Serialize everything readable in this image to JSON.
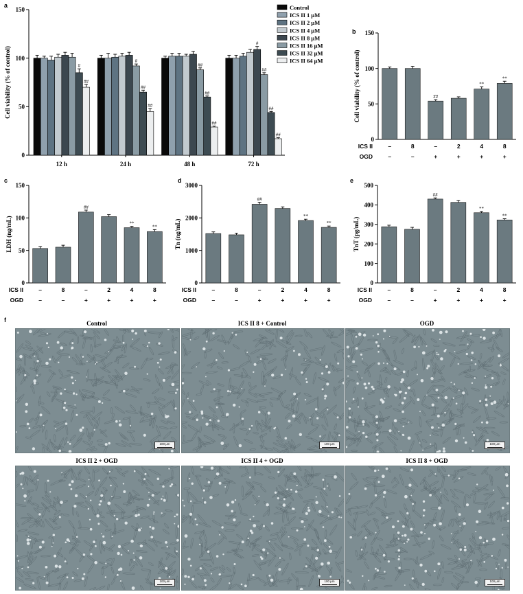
{
  "panel_labels": {
    "a": "a",
    "b": "b",
    "c": "c",
    "d": "d",
    "e": "e",
    "f": "f"
  },
  "chart_data": [
    {
      "id": "a",
      "type": "bar",
      "ylabel": "Cell viability (% of control)",
      "ylim": [
        0,
        150
      ],
      "yticks": [
        0,
        50,
        100,
        150
      ],
      "categories": [
        "12 h",
        "24 h",
        "48 h",
        "72 h"
      ],
      "series": [
        {
          "name": "Control",
          "color": "#0a0a0a",
          "values": [
            100,
            100,
            100,
            100
          ],
          "errors": [
            3,
            3,
            2,
            3
          ],
          "marks": [
            "",
            "",
            "",
            ""
          ]
        },
        {
          "name": "ICS II 1 μM",
          "color": "#8fa0ad",
          "values": [
            100,
            100,
            102,
            100
          ],
          "errors": [
            2,
            5,
            3,
            3
          ],
          "marks": [
            "",
            "",
            "",
            ""
          ]
        },
        {
          "name": "ICS II 2 μM",
          "color": "#5e7382",
          "values": [
            98,
            101,
            102,
            102
          ],
          "errors": [
            4,
            3,
            3,
            3
          ],
          "marks": [
            "",
            "",
            "",
            ""
          ]
        },
        {
          "name": "ICS II 4 μM",
          "color": "#c2cacf",
          "values": [
            101,
            102,
            102,
            106
          ],
          "errors": [
            3,
            3,
            2,
            3
          ],
          "marks": [
            "",
            "",
            "",
            ""
          ]
        },
        {
          "name": "ICS II 8 μM",
          "color": "#3c474f",
          "values": [
            103,
            103,
            104,
            109
          ],
          "errors": [
            3,
            3,
            3,
            3
          ],
          "marks": [
            "",
            "",
            "",
            "#"
          ]
        },
        {
          "name": "ICS II 16 μM",
          "color": "#8a9ba4",
          "values": [
            101,
            92,
            88,
            83
          ],
          "errors": [
            4,
            2,
            2,
            2
          ],
          "marks": [
            "",
            "#",
            "##",
            "##"
          ]
        },
        {
          "name": "ICS II 32 μM",
          "color": "#3d4b52",
          "values": [
            85,
            65,
            60,
            44
          ],
          "errors": [
            4,
            2,
            1,
            1
          ],
          "marks": [
            "#",
            "##",
            "##",
            "##"
          ]
        },
        {
          "name": "ICS II 64 μM",
          "color": "#eceeef",
          "values": [
            70,
            45,
            29,
            17
          ],
          "errors": [
            3,
            3,
            1,
            1
          ],
          "marks": [
            "##",
            "##",
            "##",
            "##"
          ]
        }
      ]
    },
    {
      "id": "b",
      "type": "bar",
      "ylabel": "Cell viability (% of control)",
      "ylim": [
        0,
        150
      ],
      "yticks": [
        0,
        50,
        100,
        150
      ],
      "values": [
        100,
        100,
        54,
        58,
        71,
        79
      ],
      "errors": [
        2,
        3,
        2,
        2,
        3,
        3
      ],
      "marks": [
        "",
        "",
        "##",
        "",
        "**",
        "**"
      ],
      "bar_color": "#6b7a80",
      "factor_rows": [
        {
          "name": "ICS II",
          "cells": [
            "–",
            "8",
            "–",
            "2",
            "4",
            "8"
          ]
        },
        {
          "name": "OGD",
          "cells": [
            "–",
            "–",
            "+",
            "+",
            "+",
            "+"
          ]
        }
      ]
    },
    {
      "id": "c",
      "type": "bar",
      "ylabel": "LDH (ng/mL)",
      "ylim": [
        0,
        150
      ],
      "yticks": [
        0,
        50,
        100,
        150
      ],
      "values": [
        53,
        55,
        109,
        102,
        85,
        79
      ],
      "errors": [
        3,
        3,
        3,
        3,
        2,
        3
      ],
      "marks": [
        "",
        "",
        "##",
        "",
        "**",
        "**"
      ],
      "bar_color": "#6b7a80",
      "factor_rows": [
        {
          "name": "ICS II",
          "cells": [
            "–",
            "8",
            "–",
            "2",
            "4",
            "8"
          ]
        },
        {
          "name": "OGD",
          "cells": [
            "–",
            "–",
            "+",
            "+",
            "+",
            "+"
          ]
        }
      ]
    },
    {
      "id": "d",
      "type": "bar",
      "ylabel": "Tn (ng/mL)",
      "ylim": [
        0,
        3000
      ],
      "yticks": [
        0,
        1000,
        2000,
        3000
      ],
      "values": [
        1520,
        1480,
        2420,
        2290,
        1920,
        1710
      ],
      "errors": [
        50,
        50,
        60,
        50,
        40,
        40
      ],
      "marks": [
        "",
        "",
        "##",
        "",
        "**",
        "**"
      ],
      "bar_color": "#6b7a80",
      "factor_rows": [
        {
          "name": "ICS II",
          "cells": [
            "–",
            "8",
            "–",
            "2",
            "4",
            "8"
          ]
        },
        {
          "name": "OGD",
          "cells": [
            "–",
            "–",
            "+",
            "+",
            "+",
            "+"
          ]
        }
      ]
    },
    {
      "id": "e",
      "type": "bar",
      "ylabel": "TnT (pg/mL)",
      "ylim": [
        0,
        500
      ],
      "yticks": [
        0,
        100,
        200,
        300,
        400,
        500
      ],
      "values": [
        288,
        275,
        430,
        413,
        360,
        323
      ],
      "errors": [
        8,
        10,
        6,
        10,
        6,
        6
      ],
      "marks": [
        "",
        "",
        "##",
        "",
        "**",
        "**"
      ],
      "bar_color": "#6b7a80",
      "factor_rows": [
        {
          "name": "ICS II",
          "cells": [
            "–",
            "8",
            "–",
            "2",
            "4",
            "8"
          ]
        },
        {
          "name": "OGD",
          "cells": [
            "–",
            "–",
            "+",
            "+",
            "+",
            "+"
          ]
        }
      ]
    }
  ],
  "micrographs": [
    {
      "title": "Control",
      "scale": "100 μm",
      "density": 0.35
    },
    {
      "title": "ICS II 8 + Control",
      "scale": "100 μm",
      "density": 0.25
    },
    {
      "title": "OGD",
      "scale": "100 μm",
      "density": 0.75
    },
    {
      "title": "ICS II 2 + OGD",
      "scale": "100 μm",
      "density": 0.6
    },
    {
      "title": "ICS II 4 + OGD",
      "scale": "100 μm",
      "density": 0.5
    },
    {
      "title": "ICS II 8 + OGD",
      "scale": "100 μm",
      "density": 0.4
    }
  ],
  "colors": {
    "micro_bg": "#7d8d92",
    "micro_cell": "#e7ecee",
    "micro_line": "#5d6b70",
    "axis": "#000000"
  }
}
